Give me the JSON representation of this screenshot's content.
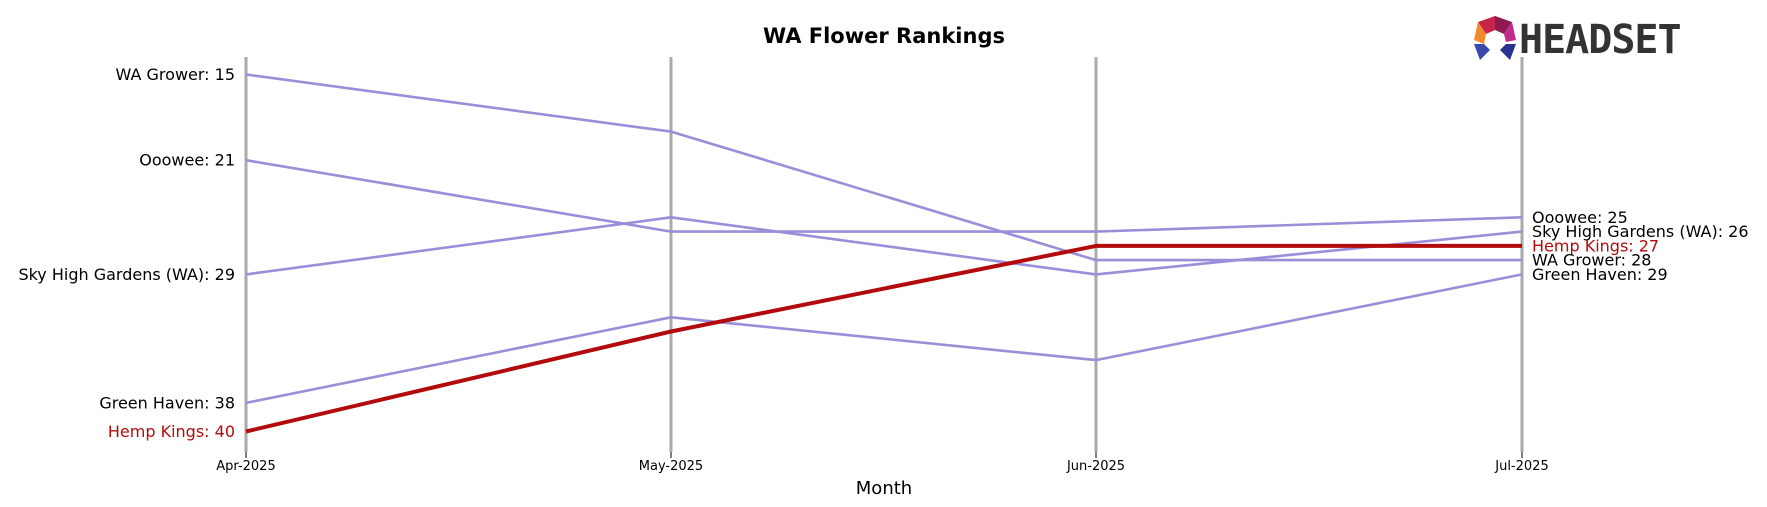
{
  "chart_data": {
    "type": "line",
    "title": "WA Flower Rankings",
    "xlabel": "Month",
    "ylabel": "",
    "categories": [
      "Apr-2025",
      "May-2025",
      "Jun-2025",
      "Jul-2025"
    ],
    "ylim": [
      13.5,
      41.5
    ],
    "y_inverted": true,
    "grid": false,
    "series": [
      {
        "name": "WA Grower",
        "values": [
          15,
          19,
          28,
          28
        ],
        "color": "#9b8ed9",
        "highlight": false
      },
      {
        "name": "Ooowee",
        "values": [
          21,
          26,
          26,
          25
        ],
        "color": "#9b8ed9",
        "highlight": false
      },
      {
        "name": "Sky High Gardens (WA)",
        "values": [
          29,
          25,
          29,
          26
        ],
        "color": "#9b8ed9",
        "highlight": false
      },
      {
        "name": "Green Haven",
        "values": [
          38,
          32,
          35,
          29
        ],
        "color": "#9b8ed9",
        "highlight": false
      },
      {
        "name": "Hemp Kings",
        "values": [
          40,
          33,
          27,
          27
        ],
        "color": "#b30b0b",
        "highlight": true
      }
    ],
    "left_labels": [
      {
        "text": "WA Grower: 15",
        "rank": 15,
        "highlight": false
      },
      {
        "text": "Ooowee: 21",
        "rank": 21,
        "highlight": false
      },
      {
        "text": "Sky High Gardens (WA): 29",
        "rank": 29,
        "highlight": false
      },
      {
        "text": "Green Haven: 38",
        "rank": 38,
        "highlight": false
      },
      {
        "text": "Hemp Kings: 40",
        "rank": 40,
        "highlight": true
      }
    ],
    "right_labels": [
      {
        "text": "Ooowee: 25",
        "rank": 25,
        "highlight": false
      },
      {
        "text": "Sky High Gardens (WA): 26",
        "rank": 26,
        "highlight": false
      },
      {
        "text": "Hemp Kings: 27",
        "rank": 27,
        "highlight": true
      },
      {
        "text": "WA Grower: 28",
        "rank": 28,
        "highlight": false
      },
      {
        "text": "Green Haven: 29",
        "rank": 29,
        "highlight": false
      }
    ],
    "colors": {
      "base": "#9b8ed9",
      "highlight": "#b30b0b",
      "gridline": "#aaaaaa"
    }
  },
  "logo": {
    "text": "HEADSET"
  }
}
